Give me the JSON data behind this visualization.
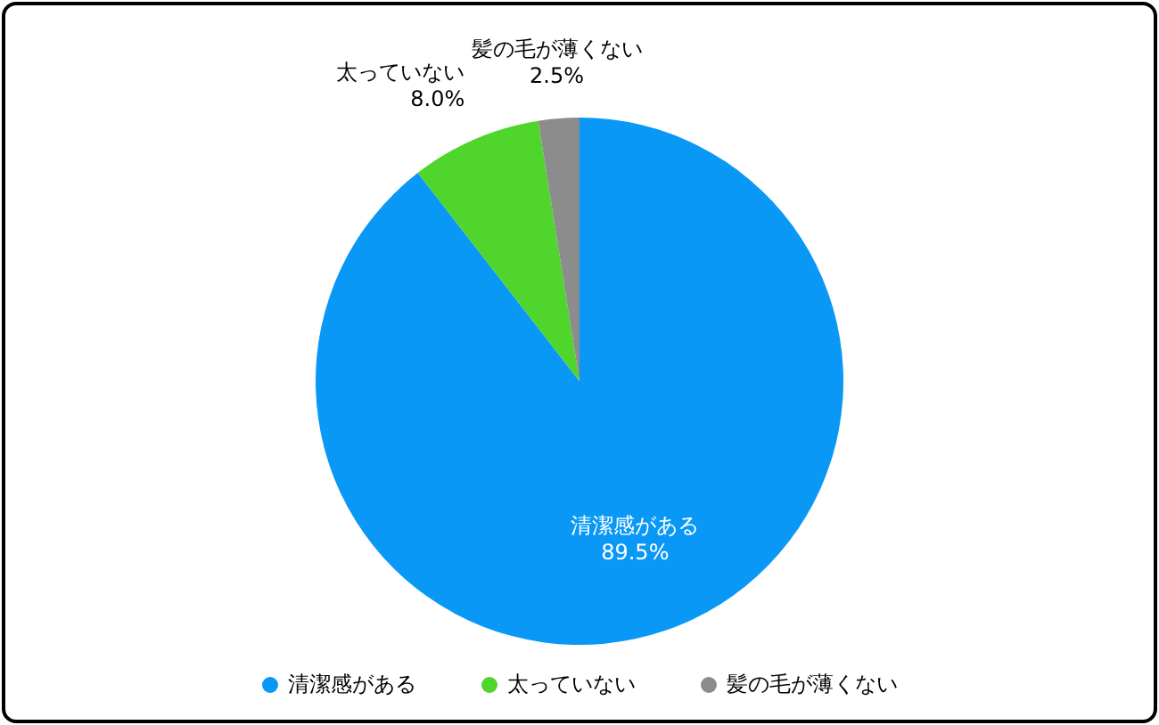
{
  "chart_data": {
    "type": "pie",
    "categories": [
      "清潔感がある",
      "太っていない",
      "髪の毛が薄くない"
    ],
    "values": [
      89.5,
      8.0,
      2.5
    ],
    "value_labels": [
      "89.5%",
      "8.0%",
      "2.5%"
    ],
    "colors": [
      "#0a98f6",
      "#4fd52b",
      "#8c8c8c"
    ],
    "legend": "bottom"
  }
}
